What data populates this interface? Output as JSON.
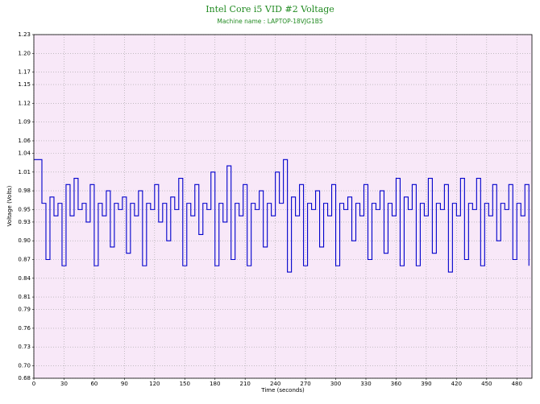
{
  "chart_data": {
    "type": "line",
    "title": "Intel Core i5 VID #2 Voltage",
    "subtitle": "Machine name : LAPTOP-18VJG1B5",
    "xlabel": "Time (seconds)",
    "ylabel": "Voltage (Volts)",
    "x": [
      0,
      4,
      8,
      12,
      16,
      20,
      24,
      28,
      32,
      36,
      40,
      44,
      48,
      52,
      56,
      60,
      64,
      68,
      72,
      76,
      80,
      84,
      88,
      92,
      96,
      100,
      104,
      108,
      112,
      116,
      120,
      124,
      128,
      132,
      136,
      140,
      144,
      148,
      152,
      156,
      160,
      164,
      168,
      172,
      176,
      180,
      184,
      188,
      192,
      196,
      200,
      204,
      208,
      212,
      216,
      220,
      224,
      228,
      232,
      236,
      240,
      244,
      248,
      252,
      256,
      260,
      264,
      268,
      272,
      276,
      280,
      284,
      288,
      292,
      296,
      300,
      304,
      308,
      312,
      316,
      320,
      324,
      328,
      332,
      336,
      340,
      344,
      348,
      352,
      356,
      360,
      364,
      368,
      372,
      376,
      380,
      384,
      388,
      392,
      396,
      400,
      404,
      408,
      412,
      416,
      420,
      424,
      428,
      432,
      436,
      440,
      444,
      448,
      452,
      456,
      460,
      464,
      468,
      472,
      476,
      480,
      484,
      488,
      492
    ],
    "series": [
      {
        "name": "Intel Core i5 VID #2 Voltage",
        "color": "#0000cc",
        "values": [
          1.03,
          1.03,
          0.96,
          0.87,
          0.97,
          0.94,
          0.96,
          0.86,
          0.99,
          0.94,
          1.0,
          0.95,
          0.96,
          0.93,
          0.99,
          0.86,
          0.96,
          0.94,
          0.98,
          0.89,
          0.96,
          0.95,
          0.97,
          0.88,
          0.96,
          0.94,
          0.98,
          0.86,
          0.96,
          0.95,
          0.99,
          0.93,
          0.96,
          0.9,
          0.97,
          0.95,
          1.0,
          0.86,
          0.96,
          0.94,
          0.99,
          0.91,
          0.96,
          0.95,
          1.01,
          0.86,
          0.96,
          0.93,
          1.02,
          0.87,
          0.96,
          0.94,
          0.99,
          0.86,
          0.96,
          0.95,
          0.98,
          0.89,
          0.96,
          0.94,
          1.01,
          0.96,
          1.03,
          0.85,
          0.97,
          0.94,
          0.99,
          0.86,
          0.96,
          0.95,
          0.98,
          0.89,
          0.96,
          0.94,
          0.99,
          0.86,
          0.96,
          0.95,
          0.97,
          0.9,
          0.96,
          0.94,
          0.99,
          0.87,
          0.96,
          0.95,
          0.98,
          0.88,
          0.96,
          0.94,
          1.0,
          0.86,
          0.97,
          0.95,
          0.99,
          0.86,
          0.96,
          0.94,
          1.0,
          0.88,
          0.96,
          0.95,
          0.99,
          0.85,
          0.96,
          0.94,
          1.0,
          0.87,
          0.96,
          0.95,
          1.0,
          0.86,
          0.96,
          0.94,
          0.99,
          0.9,
          0.96,
          0.95,
          0.99,
          0.87,
          0.96,
          0.94,
          0.99,
          0.86
        ]
      }
    ],
    "xlim": [
      0,
      495
    ],
    "xticks": [
      0,
      30,
      60,
      90,
      120,
      150,
      180,
      210,
      240,
      270,
      300,
      330,
      360,
      390,
      420,
      450,
      480
    ],
    "ylim": [
      0.68,
      1.23
    ],
    "yticks": [
      0.68,
      {
        "value": 0.7,
        "label": "0.70"
      },
      0.73,
      0.76,
      0.79,
      0.81,
      0.84,
      0.87,
      {
        "value": 0.9,
        "label": "0.90"
      },
      0.93,
      0.95,
      0.98,
      1.01,
      1.04,
      1.06,
      1.09,
      1.12,
      1.15,
      1.17,
      {
        "value": 1.2,
        "label": "1.20"
      },
      1.23
    ],
    "grid": true
  }
}
